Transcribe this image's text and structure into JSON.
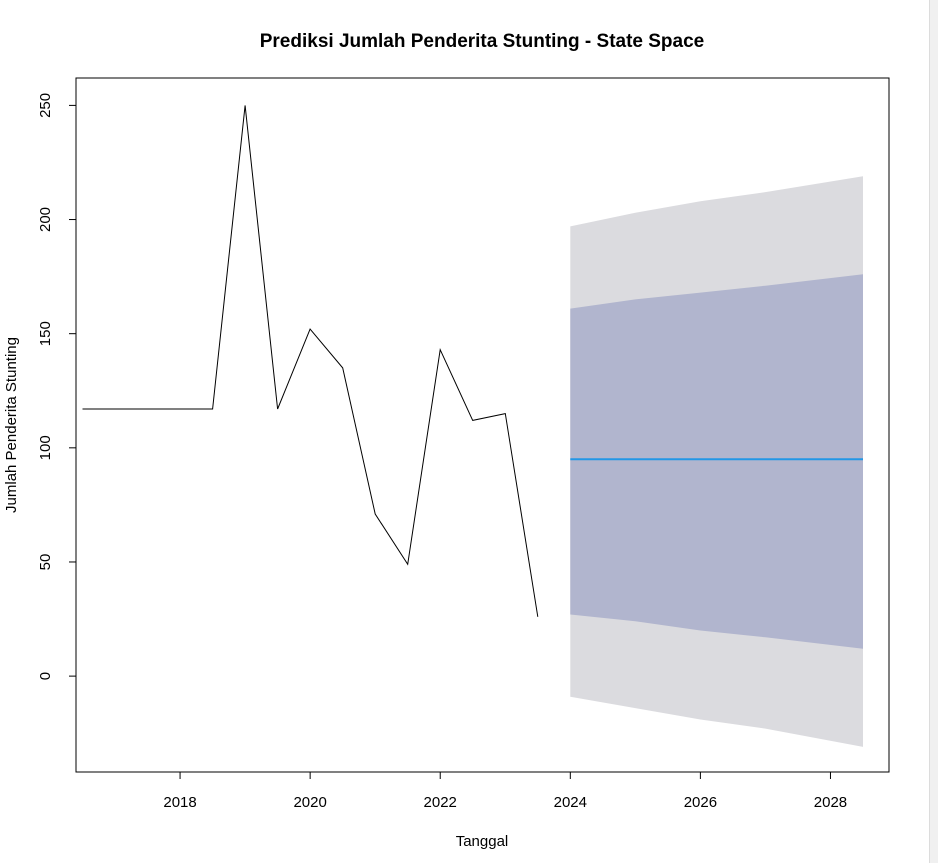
{
  "chart_data": {
    "type": "line",
    "title": "Prediksi Jumlah Penderita Stunting - State Space",
    "xlabel": "Tanggal",
    "ylabel": "Jumlah Penderita Stunting",
    "xlim": [
      2016.4,
      2028.9
    ],
    "ylim": [
      -42,
      262
    ],
    "x_ticks": [
      2018,
      2020,
      2022,
      2024,
      2026,
      2028
    ],
    "y_ticks": [
      0,
      50,
      100,
      150,
      200,
      250
    ],
    "grid": false,
    "series": [
      {
        "role": "observed",
        "color": "#000000",
        "x": [
          2016.5,
          2017.0,
          2017.5,
          2018.0,
          2018.5,
          2019.0,
          2019.5,
          2020.0,
          2020.5,
          2021.0,
          2021.5,
          2022.0,
          2022.5,
          2023.0,
          2023.5
        ],
        "values": [
          117,
          117,
          117,
          117,
          117,
          250,
          117,
          152,
          135,
          71,
          49,
          143,
          112,
          115,
          26
        ]
      },
      {
        "role": "forecast_mean",
        "color": "#2297E6",
        "x": [
          2024.0,
          2028.5
        ],
        "values": [
          95,
          95
        ]
      }
    ],
    "bands": [
      {
        "role": "95%",
        "color": "#DBDBDF",
        "x": [
          2024.0,
          2025.0,
          2026.0,
          2027.0,
          2028.5
        ],
        "lower": [
          -9,
          -14,
          -19,
          -23,
          -31
        ],
        "upper": [
          197,
          203,
          208,
          212,
          219
        ]
      },
      {
        "role": "80%",
        "color": "#B1B5CE",
        "x": [
          2024.0,
          2025.0,
          2026.0,
          2027.0,
          2028.5
        ],
        "lower": [
          27,
          24,
          20,
          17,
          12
        ],
        "upper": [
          161,
          165,
          168,
          171,
          176
        ]
      }
    ]
  }
}
